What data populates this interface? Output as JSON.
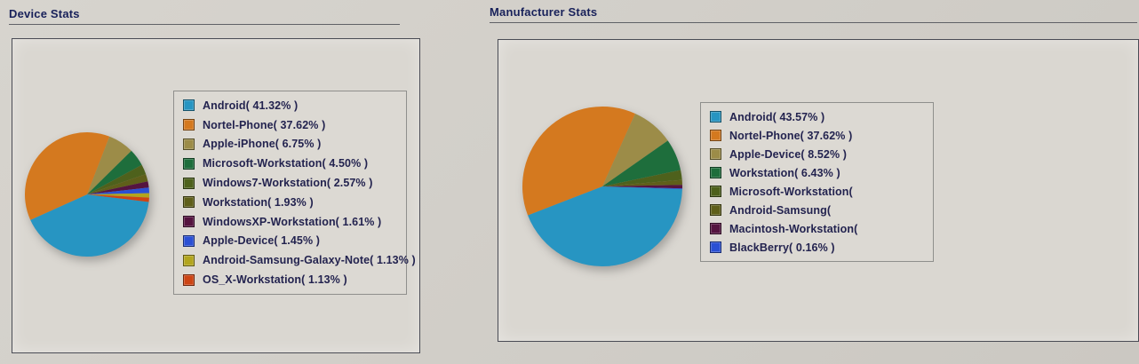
{
  "page": {
    "background": "#d2cfc9",
    "panel_background": "#dad7d1",
    "panel_border": "#4a4c55",
    "legend_background": "#dcd9d3",
    "title_color": "#18215a",
    "legend_text_color": "#23234f"
  },
  "chart_data": [
    {
      "type": "pie",
      "title": "Device Stats",
      "legend_position": "right",
      "start_angle_deg": 97,
      "series": [
        {
          "label": "Android",
          "value": 41.32,
          "color": "#2795c2",
          "legend_text": "Android( 41.32% )"
        },
        {
          "label": "Nortel-Phone",
          "value": 37.62,
          "color": "#d4791f",
          "legend_text": "Nortel-Phone( 37.62% )"
        },
        {
          "label": "Apple-iPhone",
          "value": 6.75,
          "color": "#9c8c48",
          "legend_text": "Apple-iPhone( 6.75% )"
        },
        {
          "label": "Microsoft-Workstation",
          "value": 4.5,
          "color": "#1e6e3c",
          "legend_text": "Microsoft-Workstation( 4.50% )"
        },
        {
          "label": "Windows7-Workstation",
          "value": 2.57,
          "color": "#4e611c",
          "legend_text": "Windows7-Workstation( 2.57% )"
        },
        {
          "label": "Workstation",
          "value": 1.93,
          "color": "#5f5f1a",
          "legend_text": "Workstation( 1.93% )"
        },
        {
          "label": "WindowsXP-Workstation",
          "value": 1.61,
          "color": "#551440",
          "legend_text": "WindowsXP-Workstation( 1.61% )"
        },
        {
          "label": "Apple-Device",
          "value": 1.45,
          "color": "#2b50d4",
          "legend_text": "Apple-Device( 1.45% )"
        },
        {
          "label": "Android-Samsung-Galaxy-Note",
          "value": 1.13,
          "color": "#b2a51e",
          "legend_text": "Android-Samsung-Galaxy-Note( 1.13% )"
        },
        {
          "label": "OS_X-Workstation",
          "value": 1.13,
          "color": "#cd4514",
          "legend_text": "OS_X-Workstation( 1.13% )"
        }
      ]
    },
    {
      "type": "pie",
      "title": "Manufacturer Stats",
      "legend_position": "right",
      "start_angle_deg": 92,
      "series": [
        {
          "label": "Android",
          "value": 43.57,
          "color": "#2795c2",
          "legend_text": "Android( 43.57% )"
        },
        {
          "label": "Nortel-Phone",
          "value": 37.62,
          "color": "#d4791f",
          "legend_text": "Nortel-Phone( 37.62% )"
        },
        {
          "label": "Apple-Device",
          "value": 8.52,
          "color": "#9c8c48",
          "legend_text": "Apple-Device( 8.52% )"
        },
        {
          "label": "Workstation",
          "value": 6.43,
          "color": "#1e6e3c",
          "legend_text": "Workstation( 6.43% )"
        },
        {
          "label": "Microsoft-Workstation",
          "value": 2.0,
          "color": "#4e611c",
          "legend_text": "Microsoft-Workstation( ",
          "value_estimated": true
        },
        {
          "label": "Android-Samsung",
          "value": 1.0,
          "color": "#5f5f1a",
          "legend_text": "Android-Samsung( ",
          "value_estimated": true
        },
        {
          "label": "Macintosh-Workstation",
          "value": 0.7,
          "color": "#551440",
          "legend_text": "Macintosh-Workstation( ",
          "value_estimated": true
        },
        {
          "label": "BlackBerry",
          "value": 0.16,
          "color": "#2b50d4",
          "legend_text": "BlackBerry( 0.16% )"
        }
      ]
    }
  ]
}
